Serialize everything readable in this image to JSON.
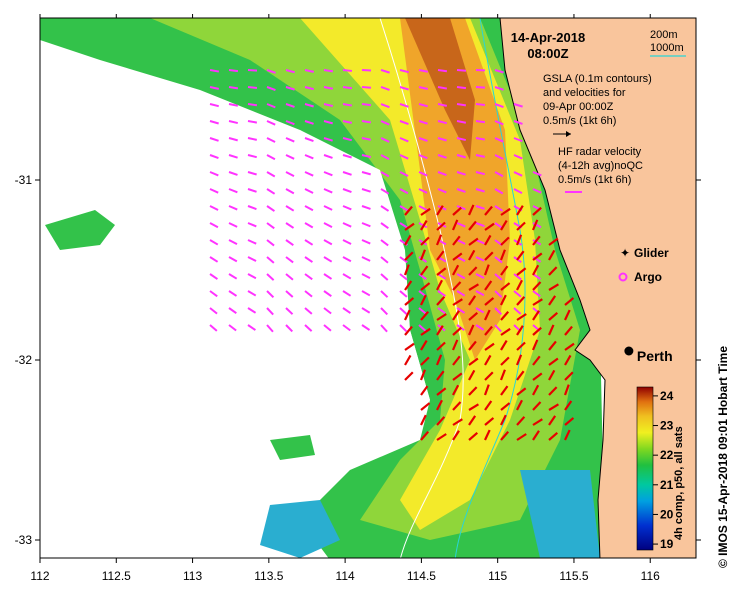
{
  "map": {
    "date": "14-Apr-2018",
    "time": "08:00Z",
    "lon_ticks": [
      112,
      112.5,
      113,
      113.5,
      114,
      114.5,
      115,
      115.5,
      116
    ],
    "lon_tick_labels": [
      "112",
      "112.5",
      "113",
      "113.5",
      "114",
      "114.5",
      "115",
      "115.5",
      "116"
    ],
    "lat_ticks": [
      -31,
      -32,
      -33
    ],
    "lat_tick_labels": [
      "-31",
      "-32",
      "-33"
    ],
    "lon_range": [
      112,
      116.3
    ],
    "lat_range": [
      -33.1,
      -30.1
    ],
    "city": {
      "name": "Perth",
      "lon": 115.86,
      "lat": -31.95
    }
  },
  "legend": {
    "contour_200": "200m",
    "contour_1000": "1000m",
    "gsla_line1": "GSLA (0.1m contours)",
    "gsla_line2": "and velocities for",
    "gsla_line3": "09-Apr 00:00Z",
    "gsla_scale": "0.5m/s (1kt 6h)",
    "hf_line1": "HF radar velocity",
    "hf_line2": "(4-12h avg)noQC",
    "hf_scale": "0.5m/s (1kt 6h)",
    "glider": "Glider",
    "argo": "Argo"
  },
  "colorbar": {
    "ticks": [
      19,
      20,
      21,
      22,
      23,
      24
    ],
    "tick_labels": [
      "19",
      "20",
      "21",
      "22",
      "23",
      "24"
    ],
    "range": [
      18.8,
      24.3
    ],
    "title": "4h comp, p50, all sats"
  },
  "credit": "© IMOS 15-Apr-2018 09:01 Hobart Time",
  "colors": {
    "land": "#f9c59c",
    "gsla_arrows": "#ff33ff",
    "hf_arrows": "#e60000",
    "contour_200": "#2ad5d5",
    "contour_1000": "#ffffff"
  }
}
